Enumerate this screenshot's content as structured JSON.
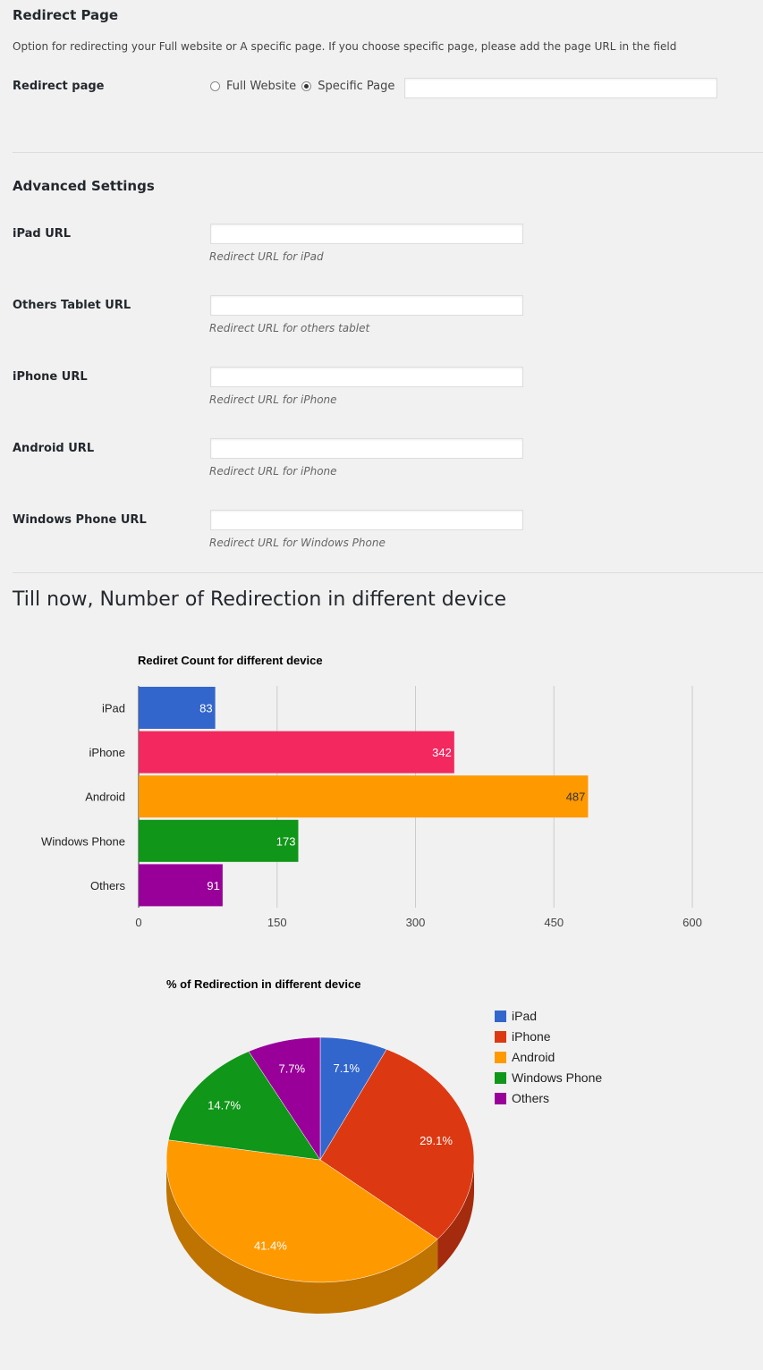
{
  "redirect_section": {
    "title": "Redirect Page",
    "description": "Option for redirecting your Full website or A specific page. If you choose specific page, please add the page URL in the field",
    "field_label": "Redirect page",
    "option_full": "Full Website",
    "option_specific": "Specific Page",
    "selected": "specific",
    "page_url_value": ""
  },
  "advanced_section": {
    "title": "Advanced Settings",
    "fields": [
      {
        "label": "iPad URL",
        "value": "",
        "help": "Redirect URL for iPad"
      },
      {
        "label": "Others Tablet URL",
        "value": "",
        "help": "Redirect URL for others tablet"
      },
      {
        "label": "iPhone URL",
        "value": "",
        "help": "Redirect URL for iPhone"
      },
      {
        "label": "Android URL",
        "value": "",
        "help": "Redirect URL for iPhone"
      },
      {
        "label": "Windows Phone URL",
        "value": "",
        "help": "Redirect URL for Windows Phone"
      }
    ]
  },
  "stats_title": "Till now, Number of Redirection in different device",
  "chart_data": [
    {
      "type": "bar",
      "orientation": "horizontal",
      "title": "Rediret Count for different device",
      "categories": [
        "iPad",
        "iPhone",
        "Android",
        "Windows Phone",
        "Others"
      ],
      "values": [
        83,
        342,
        487,
        173,
        91
      ],
      "value_labels": [
        "83",
        "342",
        "487",
        "173",
        "91"
      ],
      "colors": [
        "#3366cc",
        "#f2285f",
        "#ff9900",
        "#109618",
        "#990099"
      ],
      "xlim": [
        0,
        600
      ],
      "xticks": [
        "0",
        "150",
        "300",
        "450",
        "600"
      ],
      "grid": true
    },
    {
      "type": "pie",
      "style": "3d",
      "title": "% of Redirection in different device",
      "categories": [
        "iPad",
        "iPhone",
        "Android",
        "Windows Phone",
        "Others"
      ],
      "values": [
        7.1,
        29.1,
        41.4,
        14.7,
        7.7
      ],
      "value_labels": [
        "7.1%",
        "29.1%",
        "41.4%",
        "14.7%",
        "7.7%"
      ],
      "colors": [
        "#3366cc",
        "#dc3912",
        "#ff9900",
        "#109618",
        "#990099"
      ],
      "legend": "right"
    }
  ]
}
